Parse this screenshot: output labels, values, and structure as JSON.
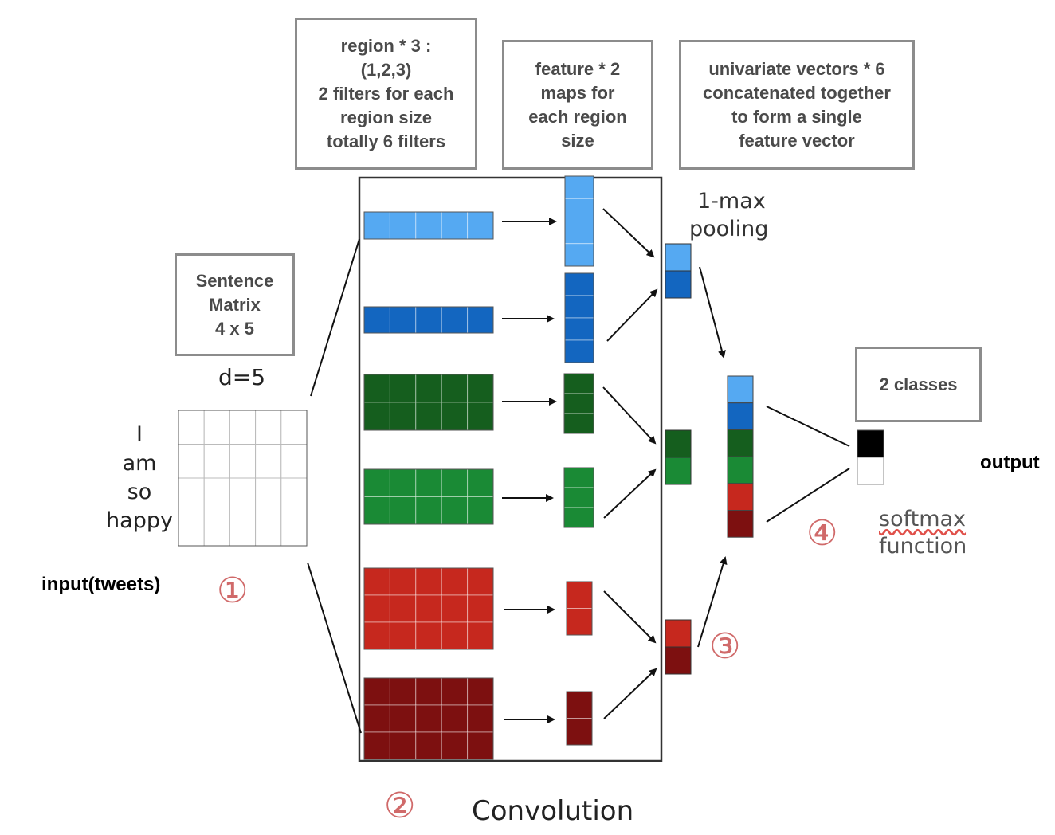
{
  "boxes": {
    "region": "region * 3 :\n(1,2,3)\n2 filters for each\nregion size\ntotally 6 filters",
    "feature": "feature * 2\nmaps for\neach region\nsize",
    "univariate": "univariate vectors * 6\nconcatenated together\nto form a single\nfeature vector",
    "sentence": "Sentence\nMatrix\n4 x 5",
    "classes": "2 classes"
  },
  "labels": {
    "d": "d=5",
    "words": [
      "I",
      "am",
      "so",
      "happy"
    ],
    "input": "input(tweets)",
    "pooling_line1": "1-max",
    "pooling_line2": "pooling",
    "convolution": "Convolution",
    "output": "output",
    "softmax": "softmax",
    "function": "function"
  },
  "steps": [
    "①",
    "②",
    "③",
    "④"
  ],
  "colors": {
    "light_blue": "#55a9f2",
    "blue": "#1366c0",
    "dark_green": "#155e1e",
    "green": "#1a8a35",
    "red": "#c6281e",
    "dark_red": "#7d1010",
    "step_number": "#d06a6a",
    "box_border": "#8c8c8c"
  }
}
